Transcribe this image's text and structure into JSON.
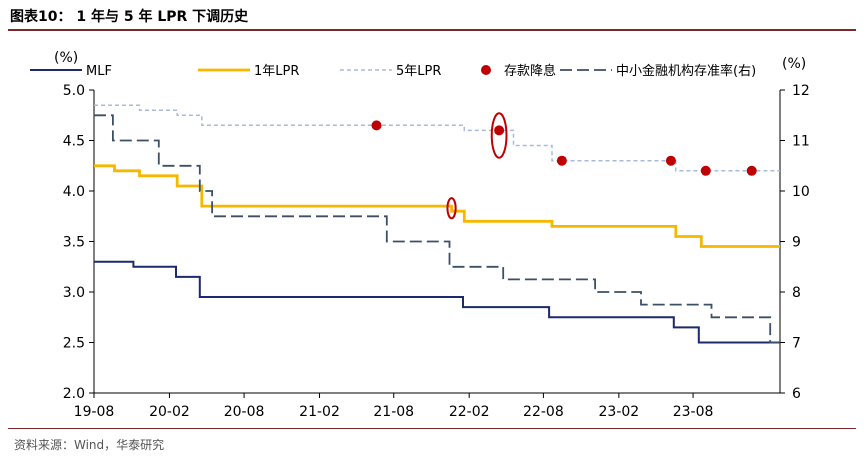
{
  "figure": {
    "title": "图表10： 1 年与 5 年 LPR 下调历史",
    "source": "资料来源：Wind，华泰研究"
  },
  "colors": {
    "mlf": "#1a2a6c",
    "lpr1y": "#f5b800",
    "lpr5y": "#a9b9dd",
    "deposit": "#c00000",
    "rrr": "#3d4f66",
    "highlight": "#c00000"
  },
  "chart_data": {
    "type": "line",
    "left_axis": {
      "unit": "(%)",
      "min": 2.0,
      "max": 5.0,
      "ticks": [
        "2.0",
        "2.5",
        "3.0",
        "3.5",
        "4.0",
        "4.5",
        "5.0"
      ]
    },
    "right_axis": {
      "unit": "(%)",
      "min": 6,
      "max": 12,
      "ticks": [
        "6",
        "7",
        "8",
        "9",
        "10",
        "11",
        "12"
      ]
    },
    "x_axis": {
      "start": "2019-08-01",
      "end": "2024-02-29",
      "ticks": [
        "19-08",
        "20-02",
        "20-08",
        "21-02",
        "21-08",
        "22-02",
        "22-08",
        "23-02",
        "23-08"
      ]
    },
    "grid": false,
    "legend": [
      {
        "name": "MLF"
      },
      {
        "name": "1年LPR"
      },
      {
        "name": "5年LPR"
      },
      {
        "name": "存款降息"
      },
      {
        "name": "中小金融机构存准率(右)"
      }
    ],
    "series": [
      {
        "name": "MLF",
        "axis": "left",
        "step": true,
        "points": [
          [
            "2019-08-01",
            3.3
          ],
          [
            "2019-11-05",
            3.25
          ],
          [
            "2020-02-17",
            3.15
          ],
          [
            "2020-04-15",
            2.95
          ],
          [
            "2022-01-17",
            2.85
          ],
          [
            "2022-08-15",
            2.75
          ],
          [
            "2023-06-15",
            2.65
          ],
          [
            "2023-08-15",
            2.5
          ],
          [
            "2024-02-29",
            2.5
          ]
        ]
      },
      {
        "name": "1年LPR",
        "axis": "left",
        "step": true,
        "points": [
          [
            "2019-08-01",
            4.25
          ],
          [
            "2019-09-20",
            4.2
          ],
          [
            "2019-11-20",
            4.15
          ],
          [
            "2020-02-20",
            4.05
          ],
          [
            "2020-04-20",
            3.85
          ],
          [
            "2021-12-20",
            3.8
          ],
          [
            "2022-01-20",
            3.7
          ],
          [
            "2022-08-22",
            3.65
          ],
          [
            "2023-06-20",
            3.55
          ],
          [
            "2023-08-21",
            3.45
          ],
          [
            "2024-02-29",
            3.45
          ]
        ]
      },
      {
        "name": "5年LPR",
        "axis": "left",
        "step": true,
        "points": [
          [
            "2019-08-01",
            4.85
          ],
          [
            "2019-11-20",
            4.8
          ],
          [
            "2020-02-20",
            4.75
          ],
          [
            "2020-04-20",
            4.65
          ],
          [
            "2022-01-20",
            4.6
          ],
          [
            "2022-05-20",
            4.45
          ],
          [
            "2022-08-22",
            4.3
          ],
          [
            "2023-06-20",
            4.2
          ],
          [
            "2024-02-29",
            4.2
          ]
        ]
      },
      {
        "name": "中小金融机构存准率(右)",
        "axis": "right",
        "step": true,
        "points": [
          [
            "2019-08-01",
            11.5
          ],
          [
            "2019-09-16",
            11.0
          ],
          [
            "2020-01-06",
            10.5
          ],
          [
            "2020-04-15",
            10.0
          ],
          [
            "2020-05-15",
            9.5
          ],
          [
            "2021-07-15",
            9.0
          ],
          [
            "2021-12-15",
            8.5
          ],
          [
            "2022-04-25",
            8.25
          ],
          [
            "2022-12-05",
            8.0
          ],
          [
            "2023-03-27",
            7.75
          ],
          [
            "2023-09-15",
            7.5
          ],
          [
            "2024-02-05",
            7.0
          ],
          [
            "2024-02-29",
            7.0
          ]
        ]
      }
    ],
    "deposit_cuts": [
      [
        "2021-06-20",
        4.65
      ],
      [
        "2022-04-15",
        4.6
      ],
      [
        "2022-09-15",
        4.3
      ],
      [
        "2023-06-08",
        4.3
      ],
      [
        "2023-09-01",
        4.2
      ],
      [
        "2023-12-22",
        4.2
      ]
    ],
    "highlights": [
      {
        "x": "2022-04-15",
        "y": 4.55,
        "rx_days": 18,
        "ry": 0.22
      },
      {
        "x": "2021-12-20",
        "y": 3.83,
        "rx_days": 10,
        "ry": 0.1
      }
    ]
  }
}
